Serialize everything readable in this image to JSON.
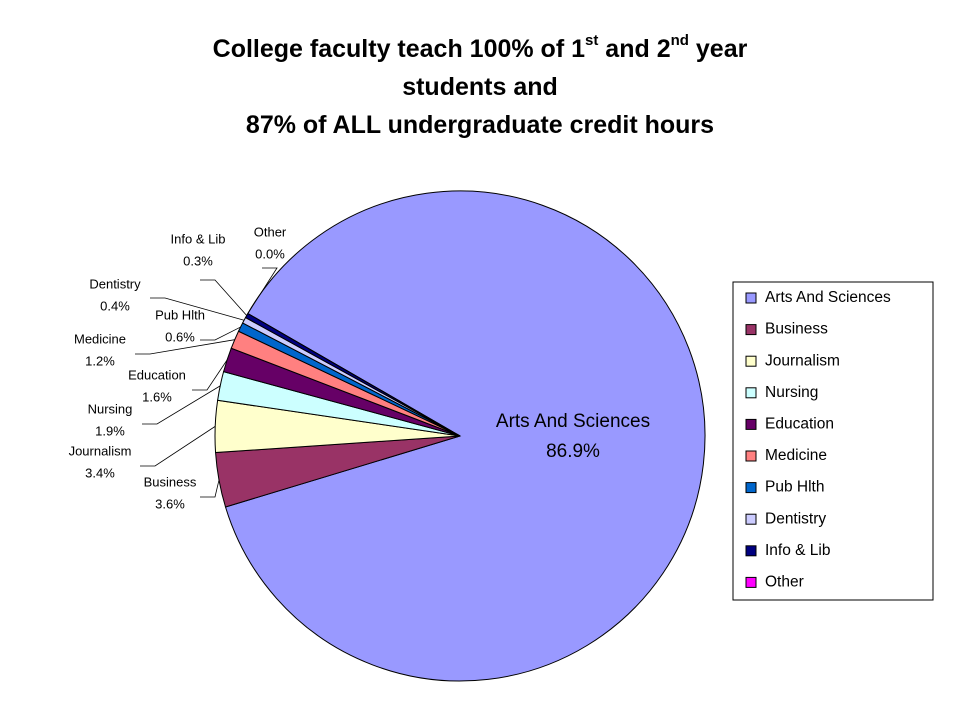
{
  "chart_data": {
    "type": "pie",
    "title": [
      [
        "College faculty teach 100% of 1",
        "st",
        " and 2",
        "nd",
        " year"
      ],
      [
        "students and"
      ],
      [
        "87% of ALL undergraduate credit hours"
      ]
    ],
    "categories": [
      "Arts And Sciences",
      "Business",
      "Journalism",
      "Nursing",
      "Education",
      "Medicine",
      "Pub Hlth",
      "Dentistry",
      "Info & Lib",
      "Other"
    ],
    "values": [
      86.9,
      3.6,
      3.4,
      1.9,
      1.6,
      1.2,
      0.6,
      0.4,
      0.3,
      0.0
    ],
    "value_labels": [
      "86.9%",
      "3.6%",
      "3.4%",
      "1.9%",
      "1.6%",
      "1.2%",
      "0.6%",
      "0.4%",
      "0.3%",
      "0.0%"
    ],
    "colors": [
      "#9999ff",
      "#993366",
      "#ffffcc",
      "#ccffff",
      "#660066",
      "#ff8080",
      "#0066cc",
      "#ccccff",
      "#000080",
      "#ff00ff"
    ],
    "legend": "right"
  }
}
